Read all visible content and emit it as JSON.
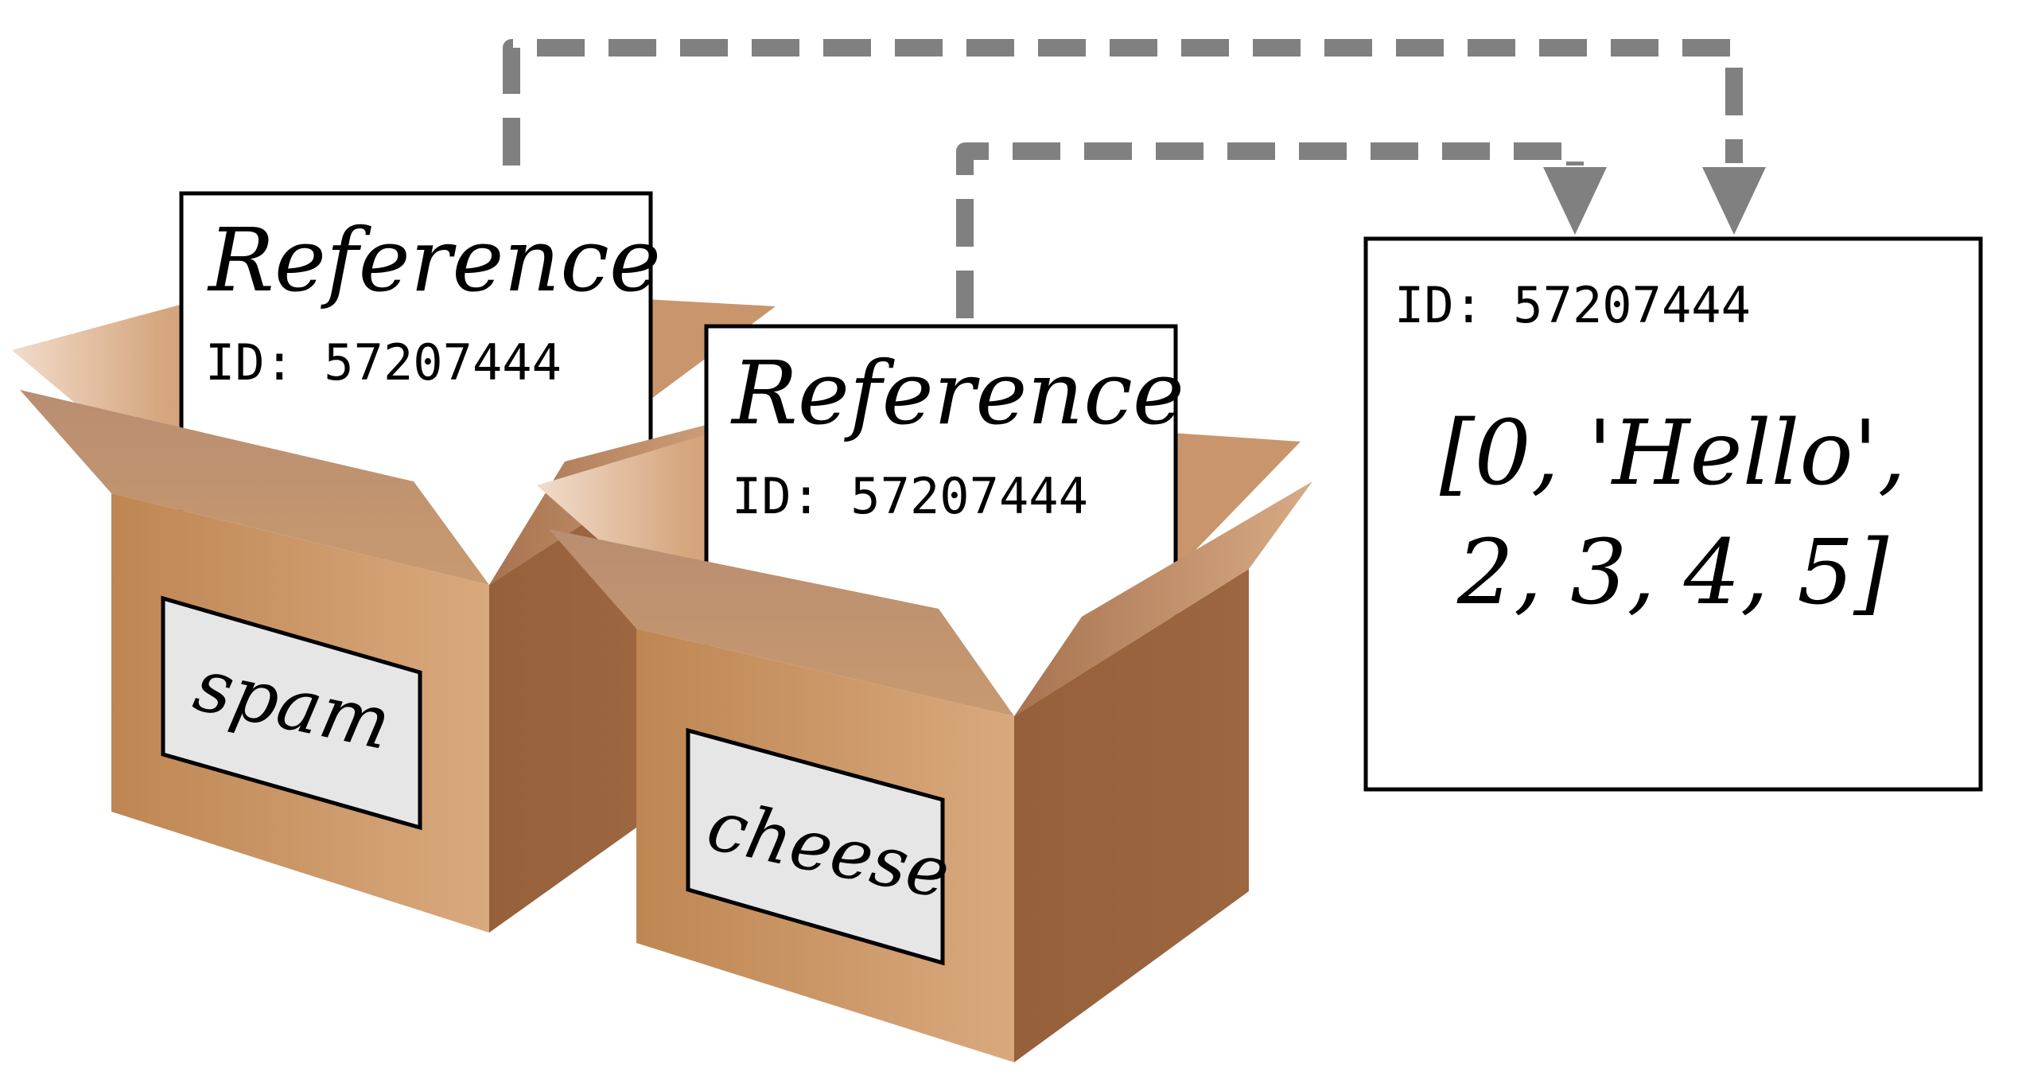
{
  "boxes": [
    {
      "name": "spam",
      "card_title": "Reference",
      "card_id": "ID: 57207444"
    },
    {
      "name": "cheese",
      "card_title": "Reference",
      "card_id": "ID: 57207444"
    }
  ],
  "object": {
    "id": "ID: 57207444",
    "value_line1": "[0, 'Hello',",
    "value_line2": "2, 3, 4, 5]"
  },
  "colors": {
    "arrow": "#808080",
    "box_light": "#d4a37c",
    "box_dark": "#8c5530",
    "label_bg": "#e6e6e6",
    "stroke": "#000000"
  }
}
